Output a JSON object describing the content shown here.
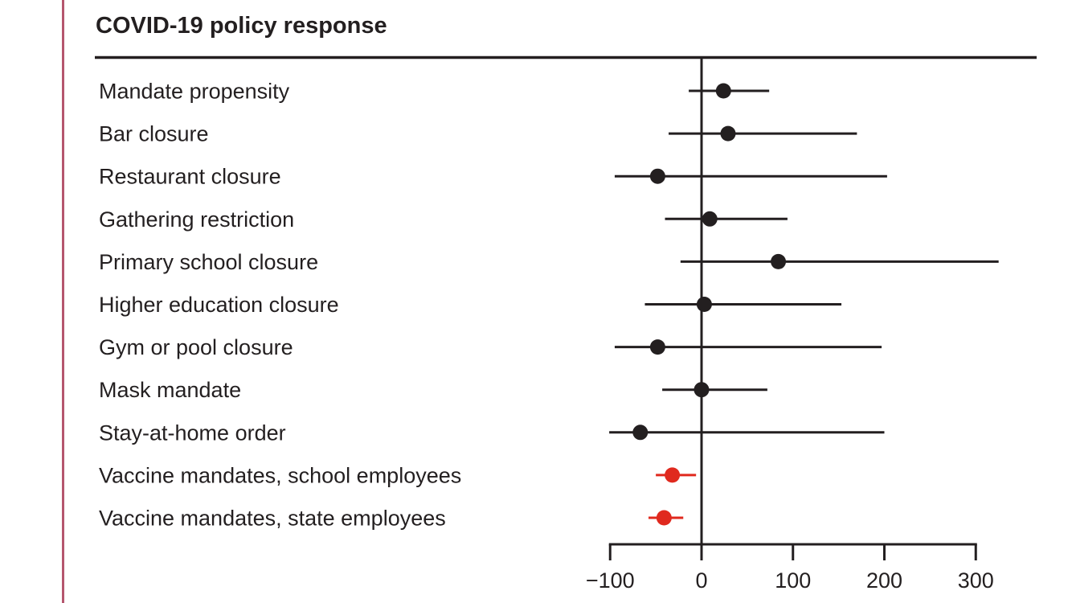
{
  "figure": {
    "title": "COVID-19 policy response",
    "text_color": "#231f20",
    "left_rule_color": "#b5566e",
    "highlight_color": "#e0291e"
  },
  "chart_data": {
    "type": "scatter",
    "subtype": "forest-plot",
    "title": "COVID-19 policy response",
    "xlabel": "",
    "ylabel": "",
    "xlim": [
      -100,
      300
    ],
    "x_ticks": [
      -100,
      0,
      100,
      200,
      300
    ],
    "x_tick_labels": [
      "−100",
      "0",
      "100",
      "200",
      "300"
    ],
    "zero_reference_line": 0,
    "grid": false,
    "legend": "none",
    "rows": [
      {
        "label": "Mandate propensity",
        "estimate": 24,
        "ci_lower": -14,
        "ci_upper": 74,
        "color": "#231f20"
      },
      {
        "label": "Bar closure",
        "estimate": 29,
        "ci_lower": -36,
        "ci_upper": 170,
        "color": "#231f20"
      },
      {
        "label": "Restaurant closure",
        "estimate": -48,
        "ci_lower": -95,
        "ci_upper": 203,
        "color": "#231f20"
      },
      {
        "label": "Gathering restriction",
        "estimate": 9,
        "ci_lower": -40,
        "ci_upper": 94,
        "color": "#231f20"
      },
      {
        "label": "Primary school closure",
        "estimate": 84,
        "ci_lower": -23,
        "ci_upper": 325,
        "color": "#231f20"
      },
      {
        "label": "Higher education closure",
        "estimate": 3,
        "ci_lower": -62,
        "ci_upper": 153,
        "color": "#231f20"
      },
      {
        "label": "Gym or pool closure",
        "estimate": -48,
        "ci_lower": -95,
        "ci_upper": 197,
        "color": "#231f20"
      },
      {
        "label": "Mask mandate",
        "estimate": 0,
        "ci_lower": -43,
        "ci_upper": 72,
        "color": "#231f20"
      },
      {
        "label": "Stay-at-home order",
        "estimate": -67,
        "ci_lower": -101,
        "ci_upper": 200,
        "color": "#231f20"
      },
      {
        "label": "Vaccine mandates, school employees",
        "estimate": -32,
        "ci_lower": -50,
        "ci_upper": -6,
        "color": "#e0291e"
      },
      {
        "label": "Vaccine mandates, state employees",
        "estimate": -41,
        "ci_lower": -58,
        "ci_upper": -20,
        "color": "#e0291e"
      }
    ]
  }
}
